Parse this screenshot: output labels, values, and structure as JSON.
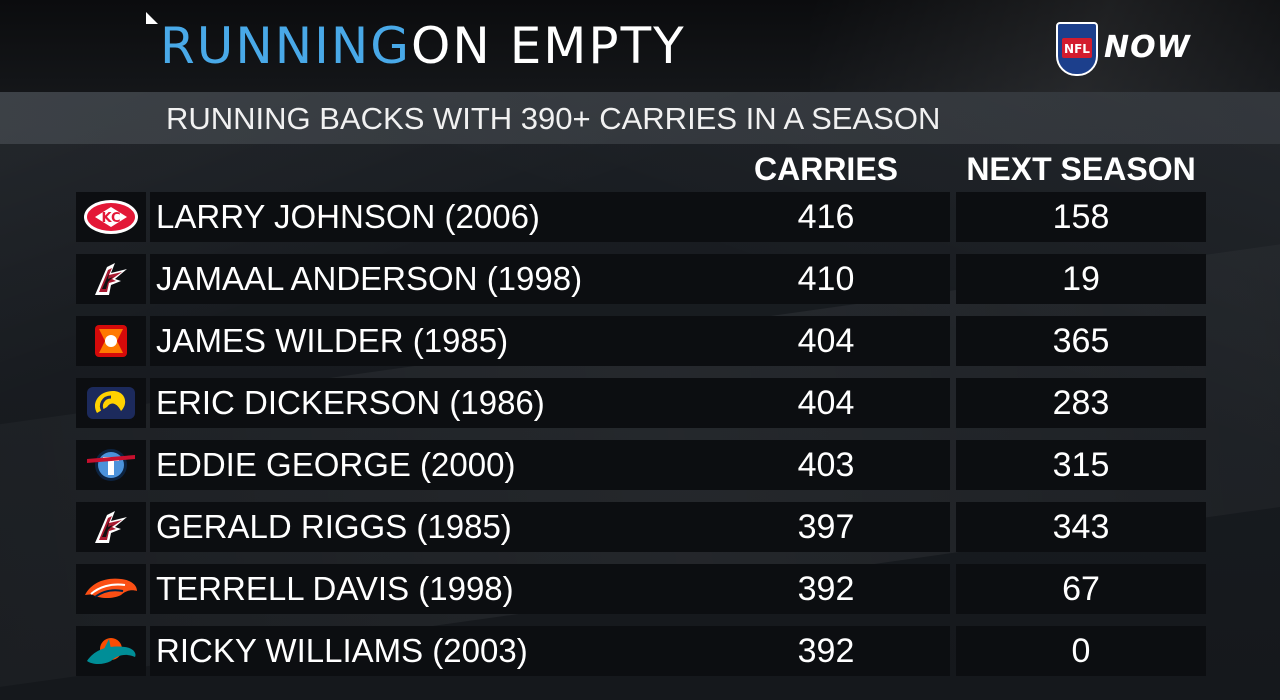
{
  "header": {
    "title_part1": "RUNNING",
    "title_part2": "ON EMPTY",
    "logo_text": "NFL",
    "logo_suffix": "NOW",
    "subtitle": "RUNNING BACKS WITH 390+ CARRIES IN A SEASON"
  },
  "table": {
    "columns": [
      "CARRIES",
      "NEXT SEASON"
    ],
    "rows": [
      {
        "team_icon": "chiefs-icon",
        "player": "LARRY JOHNSON (2006)",
        "carries": "416",
        "next_season": "158"
      },
      {
        "team_icon": "falcons-icon",
        "player": "JAMAAL ANDERSON (1998)",
        "carries": "410",
        "next_season": "19"
      },
      {
        "team_icon": "buccaneers-icon",
        "player": "JAMES WILDER (1985)",
        "carries": "404",
        "next_season": "365"
      },
      {
        "team_icon": "rams-icon",
        "player": "ERIC DICKERSON (1986)",
        "carries": "404",
        "next_season": "283"
      },
      {
        "team_icon": "titans-icon",
        "player": "EDDIE GEORGE (2000)",
        "carries": "403",
        "next_season": "315"
      },
      {
        "team_icon": "falcons-icon",
        "player": "GERALD RIGGS (1985)",
        "carries": "397",
        "next_season": "343"
      },
      {
        "team_icon": "broncos-icon",
        "player": "TERRELL DAVIS (1998)",
        "carries": "392",
        "next_season": "67"
      },
      {
        "team_icon": "dolphins-icon",
        "player": "RICKY WILLIAMS (2003)",
        "carries": "392",
        "next_season": "0"
      }
    ]
  },
  "colors": {
    "title_accent": "#49a9e8",
    "title_main": "#ffffff",
    "background": "#121519",
    "cell": "#0c0e11"
  }
}
